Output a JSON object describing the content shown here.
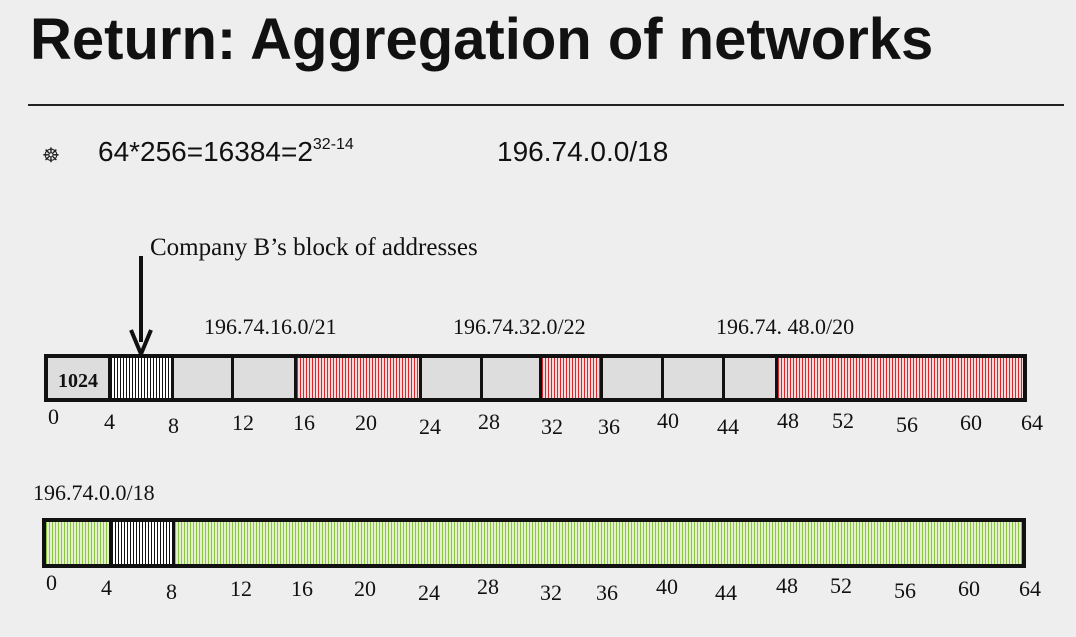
{
  "title": "Return: Aggregation of networks",
  "bullet": {
    "icon": "wheel-bullet-icon",
    "formula_base": "64*256=16384=2",
    "formula_exponent": "32-14",
    "prefix": "196.74.0.0/18"
  },
  "annotation": {
    "company_label": "Company B’s block of addresses",
    "arrow_icon": "down-arrow-icon"
  },
  "top_bar": {
    "labels": [
      "196.74.16.0/21",
      "196.74.32.0/22",
      "196.74. 48.0/20"
    ],
    "first_cell_value": "1024",
    "ticks": [
      "0",
      "4",
      "8",
      "12",
      "16",
      "20",
      "24",
      "28",
      "32",
      "36",
      "40",
      "44",
      "48",
      "52",
      "56",
      "60",
      "64"
    ]
  },
  "bottom_bar": {
    "label": "196.74.0.0/18",
    "ticks": [
      "0",
      "4",
      "8",
      "12",
      "16",
      "20",
      "24",
      "28",
      "32",
      "36",
      "40",
      "44",
      "48",
      "52",
      "56",
      "60",
      "64"
    ]
  },
  "colors": {
    "allocated": "#d9272e",
    "company_b": "#111111",
    "aggregate": "#8cc63f",
    "free": "#dddddd"
  }
}
